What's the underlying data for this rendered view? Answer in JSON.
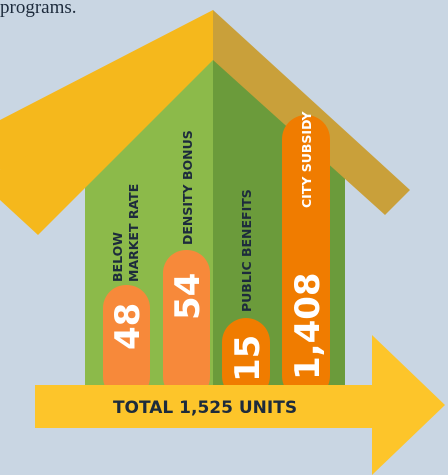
{
  "caption": "programs.",
  "items": [
    {
      "label": [
        "BELOW",
        "MARKET RATE"
      ],
      "value": "48"
    },
    {
      "label": [
        "DENSITY BONUS"
      ],
      "value": "54"
    },
    {
      "label": [
        "PUBLIC BENEFITS"
      ],
      "value": "15"
    },
    {
      "label": [
        "CITY SUBSIDY"
      ],
      "value": "1,408"
    }
  ],
  "total": "TOTAL 1,525 UNITS"
}
